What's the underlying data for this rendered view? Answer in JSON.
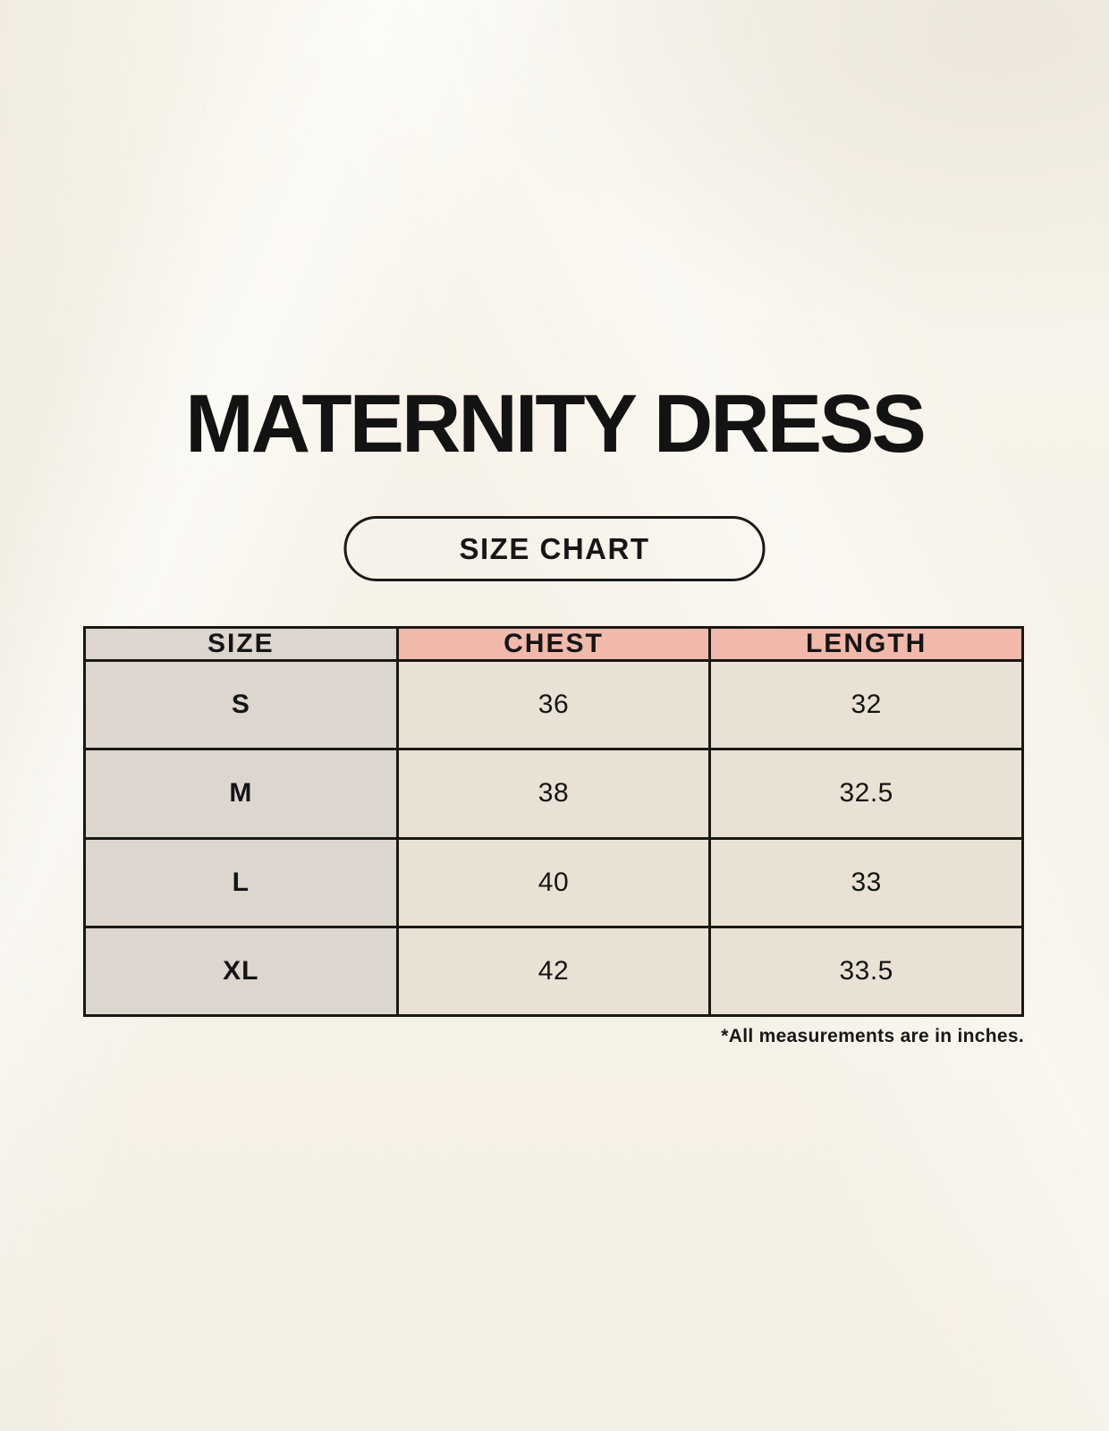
{
  "page": {
    "title": "MATERNITY DRESS",
    "badge_label": "SIZE CHART",
    "footnote": "*All measurements are in inches."
  },
  "chart_data": {
    "type": "table",
    "title": "MATERNITY DRESS",
    "subtitle": "SIZE CHART",
    "columns": [
      "SIZE",
      "CHEST",
      "LENGTH"
    ],
    "rows": [
      [
        "S",
        "36",
        "32"
      ],
      [
        "M",
        "38",
        "32.5"
      ],
      [
        "L",
        "40",
        "33"
      ],
      [
        "XL",
        "42",
        "33.5"
      ]
    ],
    "units": "inches",
    "footnote": "*All measurements are in inches."
  },
  "colors": {
    "background": "#F7F2E8",
    "header_accent": "#F0B9A9",
    "header_neutral": "#DDD6CF",
    "cell_bg": "#E9E2D4",
    "border": "#1A1815",
    "text": "#141414"
  }
}
